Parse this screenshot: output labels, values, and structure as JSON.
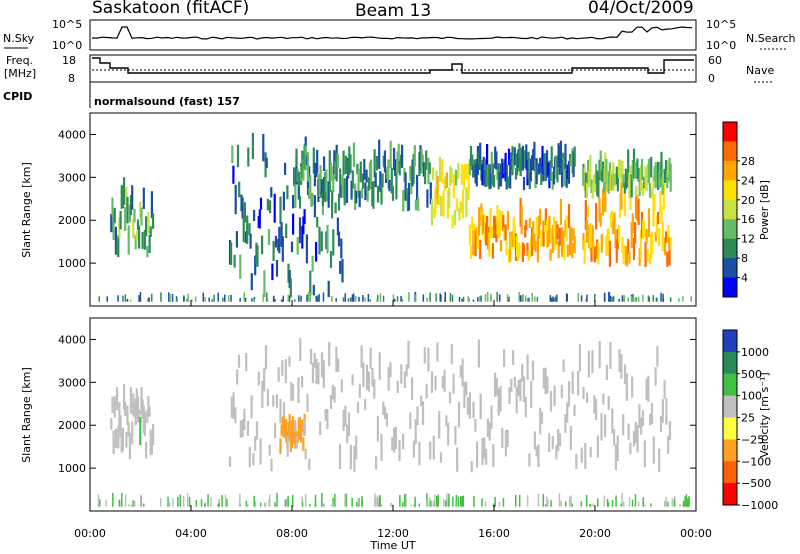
{
  "header": {
    "station": "Saskatoon (fitACF)",
    "beam": "Beam 13",
    "date": "04/Oct/2009"
  },
  "noise_panel": {
    "left_label": "N.Sky",
    "right_label": "N.Search",
    "left_ticks": [
      "10^5",
      "10^0"
    ],
    "right_ticks": [
      "10^5",
      "10^0"
    ]
  },
  "freq_panel": {
    "left_label_1": "Freq.",
    "left_label_2": "[MHz]",
    "right_label": "Nave",
    "left_ticks": [
      "18",
      "8"
    ],
    "right_ticks": [
      "60",
      "0"
    ]
  },
  "cpid": {
    "label": "CPID",
    "value": "normalsound (fast) 157"
  },
  "colors": {
    "power": [
      "#0000ff",
      "#1a4fa3",
      "#2e8b57",
      "#66bb66",
      "#c8e040",
      "#ffe000",
      "#ffa500",
      "#ff6a00",
      "#ff0000"
    ],
    "velocity": [
      "#2040c0",
      "#2a8a5a",
      "#40c040",
      "#bfbfbf",
      "#ffff40",
      "#ffa020",
      "#ff6000",
      "#ff0000"
    ],
    "ground_scatter": "#bfbfbf"
  },
  "chart_data": [
    {
      "type": "heatmap",
      "panel": "power",
      "ylabel": "Slant Range [km]",
      "yticks": [
        "1000",
        "2000",
        "3000",
        "4000"
      ],
      "ylim": [
        0,
        4500
      ],
      "xlim": [
        "00:00",
        "24:00"
      ],
      "colorbar_label": "Power [dB]",
      "colorbar_ticks": [
        "4",
        "8",
        "12",
        "16",
        "20",
        "24",
        "28"
      ],
      "regions": [
        {
          "t": [
            0.8,
            2.5
          ],
          "range": [
            1100,
            2400
          ],
          "value_db": 14
        },
        {
          "t": [
            5.5,
            10.0
          ],
          "range": [
            200,
            3500
          ],
          "value_db": 10
        },
        {
          "t": [
            8.0,
            13.5
          ],
          "range": [
            2200,
            3300
          ],
          "value_db": 12
        },
        {
          "t": [
            13.5,
            15.0
          ],
          "range": [
            1800,
            3000
          ],
          "value_db": 22
        },
        {
          "t": [
            15.0,
            19.2
          ],
          "range": [
            1000,
            1900
          ],
          "value_db": 28
        },
        {
          "t": [
            15.0,
            19.2
          ],
          "range": [
            2700,
            3300
          ],
          "value_db": 10
        },
        {
          "t": [
            19.5,
            23.0
          ],
          "range": [
            900,
            2300
          ],
          "value_db": 28
        },
        {
          "t": [
            19.5,
            23.0
          ],
          "range": [
            2500,
            3000
          ],
          "value_db": 16
        }
      ]
    },
    {
      "type": "heatmap",
      "panel": "velocity",
      "ylabel": "Slant Range [km]",
      "xlabel": "Time UT",
      "yticks": [
        "1000",
        "2000",
        "3000",
        "4000"
      ],
      "ylim": [
        0,
        4500
      ],
      "xlim": [
        "00:00",
        "24:00"
      ],
      "xticks": [
        "00:00",
        "04:00",
        "08:00",
        "12:00",
        "16:00",
        "20:00",
        "00:00"
      ],
      "colorbar_label": "Velocity [m s⁻¹]",
      "colorbar_ticks": [
        "1000",
        "500",
        "100",
        "25",
        "−25",
        "−100",
        "−500",
        "−1000"
      ],
      "regions": [
        {
          "t": [
            0.8,
            2.5
          ],
          "range": [
            1100,
            2400
          ],
          "velocity_ms": 10
        },
        {
          "t": [
            7.5,
            8.5
          ],
          "range": [
            1300,
            1900
          ],
          "velocity_ms": -300
        },
        {
          "t": [
            5.5,
            23.0
          ],
          "range": [
            900,
            3500
          ],
          "velocity_ms": 0
        }
      ]
    }
  ]
}
